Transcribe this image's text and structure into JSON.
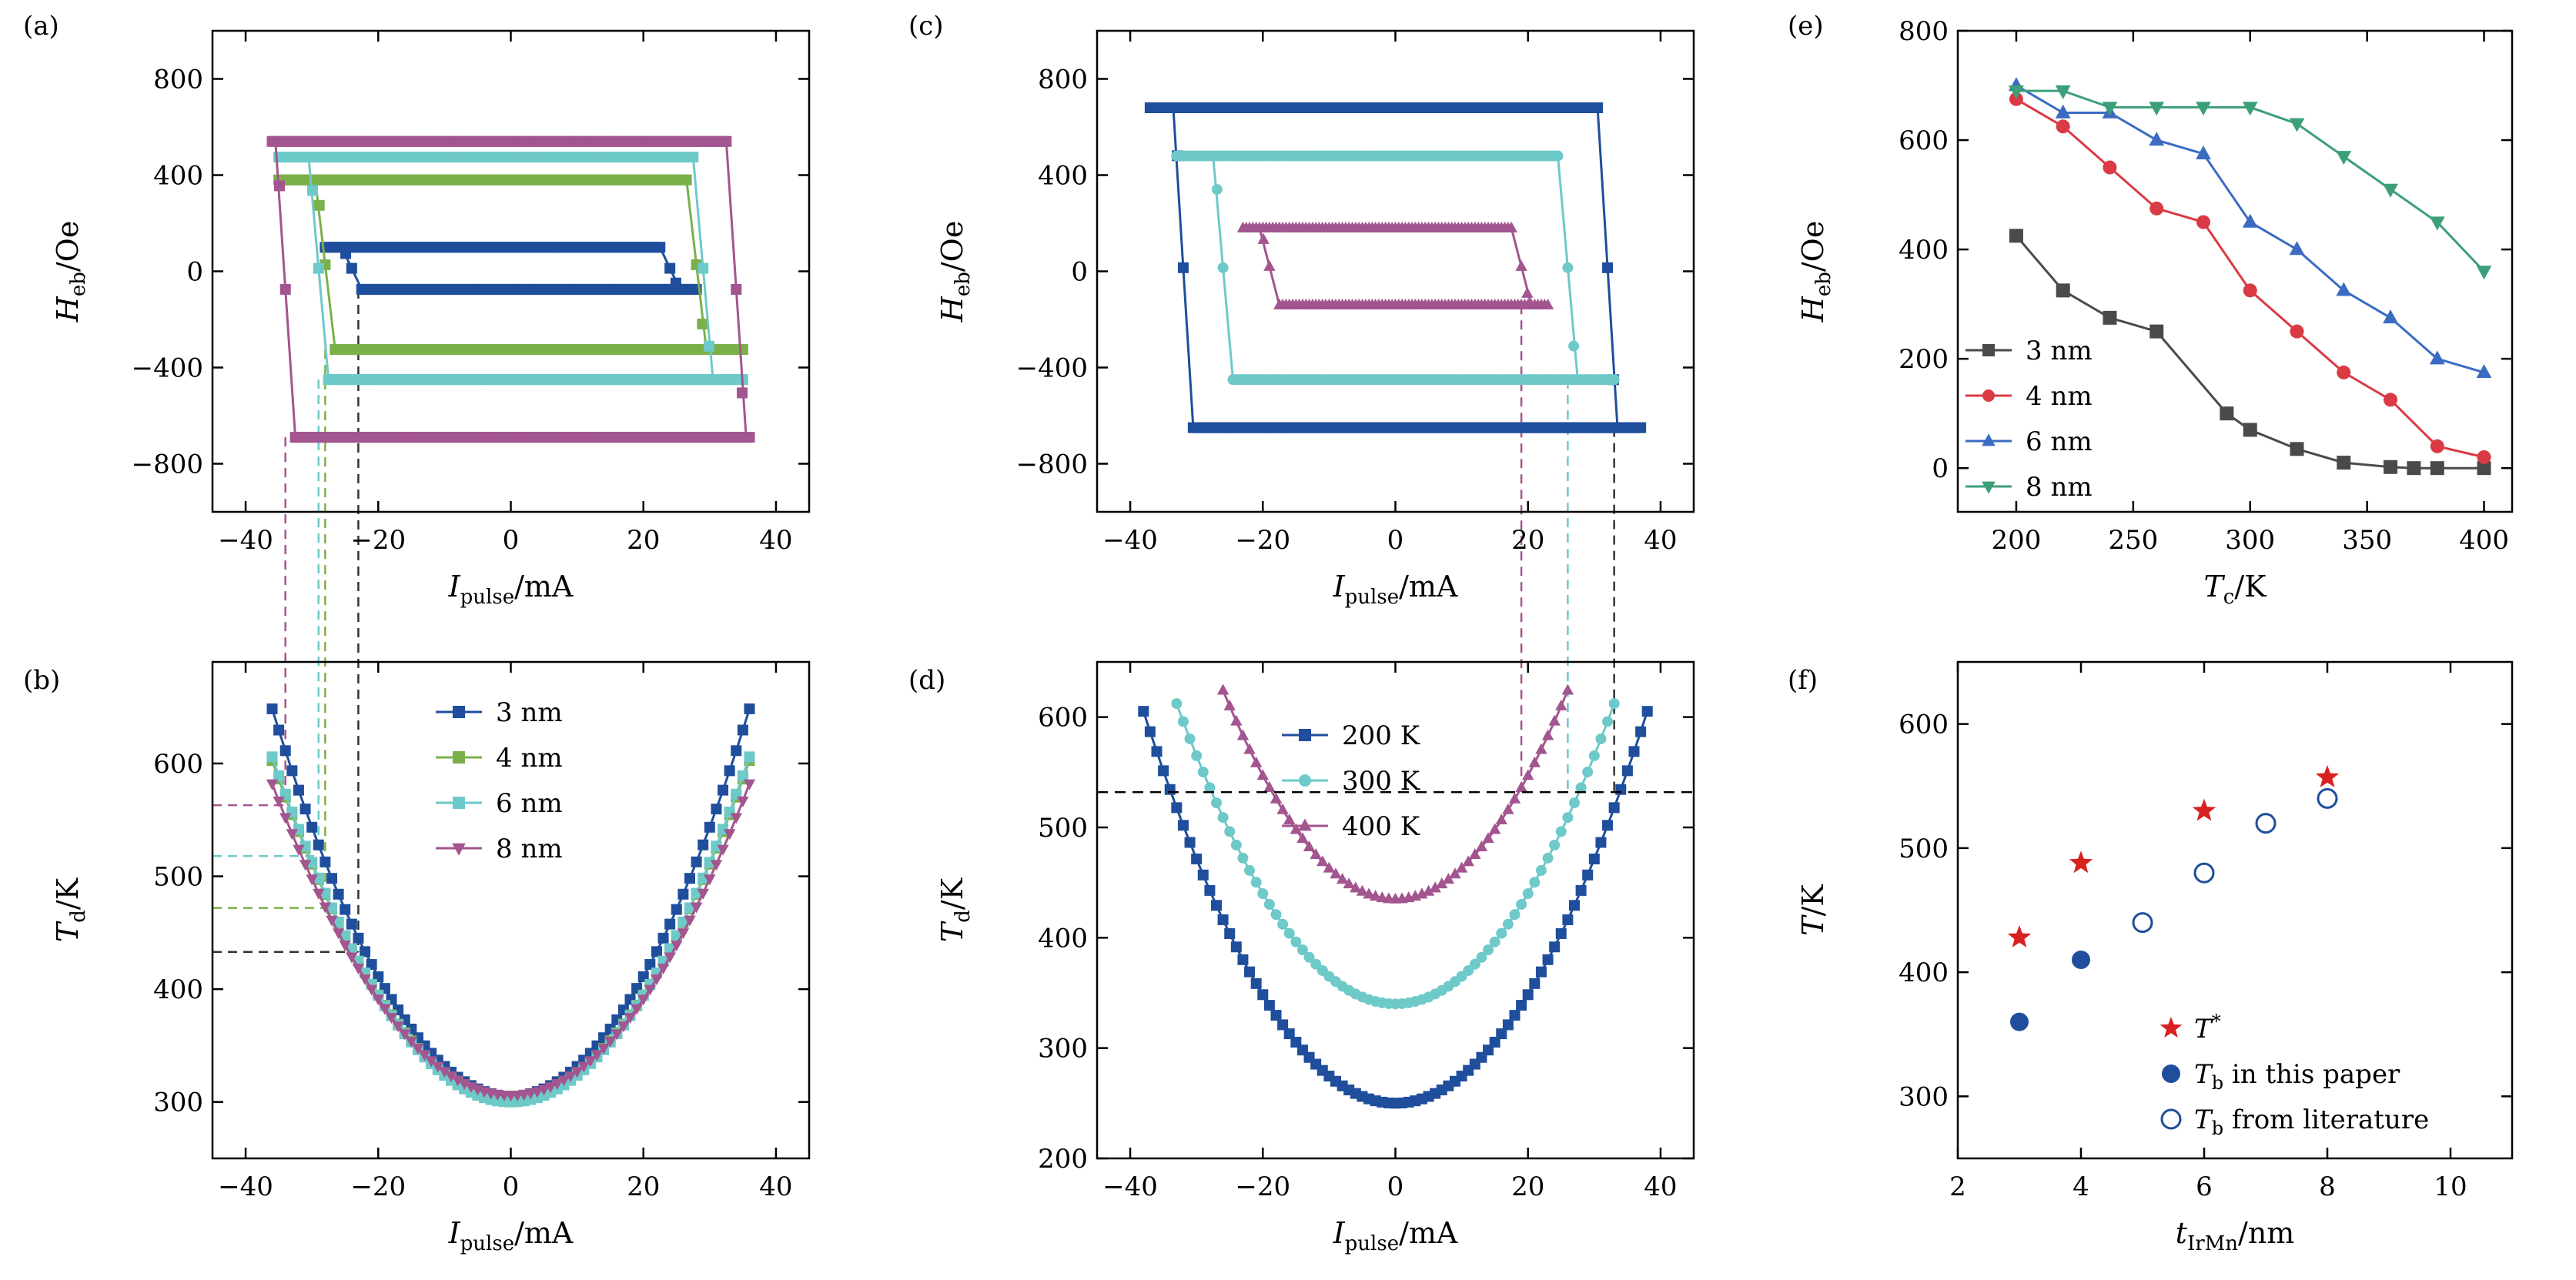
{
  "palette": {
    "navy": "#1f4e9c",
    "green": "#7bb04a",
    "cyan": "#6ec9c9",
    "magenta": "#a3558f",
    "gray": "#4a4a4a",
    "red": "#d93a44",
    "blue": "#3b6cc2",
    "teal": "#3c9f79",
    "star": "#d8221f",
    "dot": "#1f4e9c"
  },
  "chart_data": [
    {
      "panel": "(a)",
      "type": "line",
      "xlabel_main": "I",
      "xlabel_sub": "pulse",
      "xlabel_unit": "/mA",
      "ylabel_main": "H",
      "ylabel_sub": "eb",
      "ylabel_unit": "/Oe",
      "xlim": [
        -45,
        45
      ],
      "ylim": [
        -1000,
        1000
      ],
      "xticks": [
        -40,
        -20,
        0,
        20,
        40
      ],
      "yticks": [
        -800,
        -400,
        0,
        400,
        800
      ],
      "series": [
        {
          "name": "3 nm",
          "color_key": "navy",
          "marker": "square",
          "hu": 100,
          "hd": -75,
          "up_edge": 24,
          "down_edge": -24,
          "xmax": 28
        },
        {
          "name": "4 nm",
          "color_key": "green",
          "marker": "square",
          "hu": 380,
          "hd": -325,
          "up_edge": 28,
          "down_edge": -28,
          "xmax": 35
        },
        {
          "name": "6 nm",
          "color_key": "cyan",
          "marker": "square",
          "hu": 475,
          "hd": -450,
          "up_edge": 29,
          "down_edge": -29,
          "xmax": 35
        },
        {
          "name": "8 nm",
          "color_key": "magenta",
          "marker": "square",
          "hu": 540,
          "hd": -690,
          "up_edge": 34,
          "down_edge": -34,
          "xmax": 36
        }
      ]
    },
    {
      "panel": "(b)",
      "type": "line",
      "xlabel_main": "I",
      "xlabel_sub": "pulse",
      "xlabel_unit": "/mA",
      "ylabel_main": "T",
      "ylabel_sub": "d",
      "ylabel_unit": "/K",
      "xlim": [
        -45,
        45
      ],
      "ylim": [
        250,
        690
      ],
      "xticks": [
        -40,
        -20,
        0,
        20,
        40
      ],
      "yticks": [
        300,
        400,
        500,
        600
      ],
      "legend_position": "top-center",
      "series": [
        {
          "name": "3 nm",
          "color_key": "navy",
          "marker": "square",
          "T0": 305,
          "a": 0.265,
          "xmax": 36
        },
        {
          "name": "4 nm",
          "color_key": "green",
          "marker": "square",
          "T0": 302,
          "a": 0.232,
          "xmax": 36
        },
        {
          "name": "6 nm",
          "color_key": "cyan",
          "marker": "square",
          "T0": 300,
          "a": 0.236,
          "xmax": 36
        },
        {
          "name": "8 nm",
          "color_key": "magenta",
          "marker": "triangle-down",
          "T0": 306,
          "a": 0.213,
          "xmax": 36
        }
      ],
      "guides": [
        {
          "color_key": "navy",
          "x": -23,
          "y": 433
        },
        {
          "color_key": "green",
          "x": -28,
          "y": 472
        },
        {
          "color_key": "cyan",
          "x": -29,
          "y": 518
        },
        {
          "color_key": "magenta",
          "x": -34,
          "y": 563
        }
      ]
    },
    {
      "panel": "(c)",
      "type": "line",
      "xlabel_main": "I",
      "xlabel_sub": "pulse",
      "xlabel_unit": "/mA",
      "ylabel_main": "H",
      "ylabel_sub": "eb",
      "ylabel_unit": "/Oe",
      "xlim": [
        -45,
        45
      ],
      "ylim": [
        -1000,
        1000
      ],
      "xticks": [
        -40,
        -20,
        0,
        20,
        40
      ],
      "yticks": [
        -800,
        -400,
        0,
        400,
        800
      ],
      "series": [
        {
          "name": "200 K",
          "color_key": "navy",
          "marker": "square",
          "hu": 680,
          "hd": -650,
          "up_edge": 32,
          "down_edge": -32,
          "xmax": 37
        },
        {
          "name": "300 K",
          "color_key": "cyan",
          "marker": "circle",
          "hu": 480,
          "hd": -450,
          "up_edge": 26,
          "down_edge": -26,
          "xmax": 33
        },
        {
          "name": "400 K",
          "color_key": "magenta",
          "marker": "triangle-up",
          "hu": 180,
          "hd": -140,
          "up_edge": 19,
          "down_edge": -19,
          "xmax": 23
        }
      ]
    },
    {
      "panel": "(d)",
      "type": "line",
      "xlabel_main": "I",
      "xlabel_sub": "pulse",
      "xlabel_unit": "/mA",
      "ylabel_main": "T",
      "ylabel_sub": "d",
      "ylabel_unit": "/K",
      "xlim": [
        -45,
        45
      ],
      "ylim": [
        200,
        650
      ],
      "xticks": [
        -40,
        -20,
        0,
        20,
        40
      ],
      "yticks": [
        200,
        300,
        400,
        500,
        600
      ],
      "legend_position": "top-center",
      "hline": 532,
      "series": [
        {
          "name": "200 K",
          "color_key": "navy",
          "marker": "square",
          "T0": 250,
          "a": 0.246,
          "xmax": 38
        },
        {
          "name": "300 K",
          "color_key": "cyan",
          "marker": "circle",
          "T0": 340,
          "a": 0.25,
          "xmax": 33
        },
        {
          "name": "400 K",
          "color_key": "magenta",
          "marker": "triangle-up",
          "T0": 435,
          "a": 0.28,
          "xmax": 26
        }
      ],
      "guides": [
        {
          "color_key": "navy",
          "x": 33
        },
        {
          "color_key": "cyan",
          "x": 26
        },
        {
          "color_key": "magenta",
          "x": 19
        }
      ]
    },
    {
      "panel": "(e)",
      "type": "line",
      "xlabel_main": "T",
      "xlabel_sub": "c",
      "xlabel_unit": "/K",
      "ylabel_main": "H",
      "ylabel_sub": "eb",
      "ylabel_unit": "/Oe",
      "xlim": [
        175,
        412
      ],
      "ylim": [
        -80,
        800
      ],
      "xticks": [
        200,
        250,
        300,
        350,
        400
      ],
      "yticks": [
        0,
        200,
        400,
        600,
        800
      ],
      "legend_position": "lower-left",
      "series": [
        {
          "name": "3 nm",
          "color_key": "gray",
          "marker": "square",
          "x": [
            200,
            220,
            240,
            260,
            290,
            300,
            320,
            340,
            360,
            370,
            380,
            400
          ],
          "y": [
            425,
            325,
            275,
            250,
            100,
            70,
            35,
            10,
            2,
            0,
            0,
            0
          ]
        },
        {
          "name": "4 nm",
          "color_key": "red",
          "marker": "circle",
          "x": [
            200,
            220,
            240,
            260,
            280,
            300,
            320,
            340,
            360,
            380,
            400
          ],
          "y": [
            675,
            625,
            550,
            475,
            450,
            325,
            250,
            175,
            125,
            40,
            20
          ]
        },
        {
          "name": "6 nm",
          "color_key": "blue",
          "marker": "triangle-up",
          "x": [
            200,
            220,
            240,
            260,
            280,
            300,
            320,
            340,
            360,
            380,
            400
          ],
          "y": [
            700,
            650,
            650,
            600,
            575,
            450,
            400,
            325,
            275,
            200,
            175
          ]
        },
        {
          "name": "8 nm",
          "color_key": "teal",
          "marker": "triangle-down",
          "x": [
            200,
            220,
            240,
            260,
            280,
            300,
            320,
            340,
            360,
            380,
            400
          ],
          "y": [
            690,
            690,
            660,
            660,
            660,
            660,
            630,
            570,
            510,
            450,
            360
          ]
        }
      ]
    },
    {
      "panel": "(f)",
      "type": "scatter",
      "xlabel_main": "t",
      "xlabel_sub": "IrMn",
      "xlabel_unit": "/nm",
      "ylabel_main": "T",
      "ylabel_sub": "",
      "ylabel_unit": "/K",
      "xlim": [
        2,
        11
      ],
      "ylim": [
        250,
        650
      ],
      "xticks": [
        2,
        4,
        6,
        8,
        10
      ],
      "yticks": [
        300,
        400,
        500,
        600
      ],
      "legend_position": "lower-right",
      "series": [
        {
          "name_main": "T",
          "name_sup": "*",
          "name_rest": "",
          "color_key": "star",
          "marker": "star",
          "x": [
            3,
            4,
            6,
            8
          ],
          "y": [
            428,
            488,
            530,
            557
          ]
        },
        {
          "name_main": "T",
          "name_sub": "b",
          "name_rest": " in this paper",
          "color_key": "dot",
          "marker": "circle-filled",
          "x": [
            3,
            4
          ],
          "y": [
            360,
            410
          ]
        },
        {
          "name_main": "T",
          "name_sub": "b",
          "name_rest": " from literature",
          "color_key": "dot",
          "marker": "circle-open",
          "x": [
            5,
            6,
            7,
            8
          ],
          "y": [
            440,
            480,
            520,
            540
          ]
        }
      ]
    }
  ]
}
